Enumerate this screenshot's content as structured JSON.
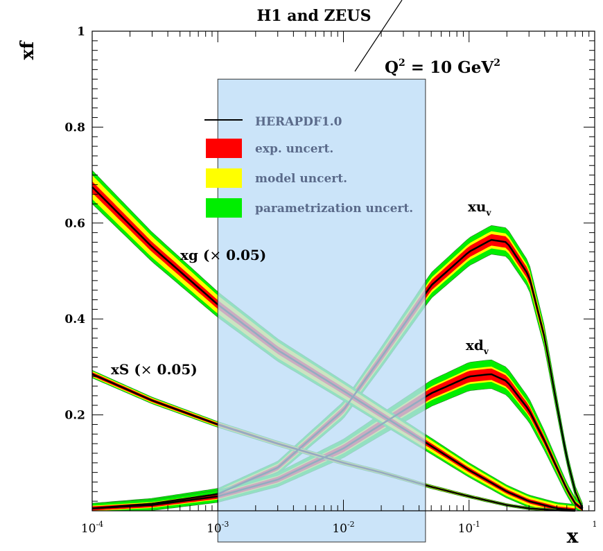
{
  "chart_data": {
    "type": "line",
    "title": "H1 and ZEUS",
    "annotation": "Q² = 10 GeV²",
    "annotation_parts": {
      "q": "Q",
      "q_exp": "2",
      "mid": " = 10 GeV",
      "gev_exp": "2"
    },
    "ylabel": "xf",
    "xlabel": "x",
    "xscale": "log",
    "xlim": [
      0.0001,
      1
    ],
    "ylim": [
      0,
      1
    ],
    "x_ticks": [
      {
        "base": "10",
        "exp": "-4",
        "value": 0.0001
      },
      {
        "base": "10",
        "exp": "-3",
        "value": 0.001
      },
      {
        "base": "10",
        "exp": "-2",
        "value": 0.01
      },
      {
        "base": "10",
        "exp": "-1",
        "value": 0.1
      },
      {
        "base": "",
        "exp": "1",
        "value": 1
      }
    ],
    "y_ticks": [
      "0.2",
      "0.4",
      "0.6",
      "0.8",
      "1"
    ],
    "y_tick_values": [
      0.2,
      0.4,
      0.6,
      0.8,
      1.0
    ],
    "legend": {
      "placement": "upper-center",
      "entries": [
        {
          "label": "HERAPDF1.0",
          "kind": "line",
          "color": "#000000"
        },
        {
          "label": "exp. uncert.",
          "kind": "band",
          "color": "#ff0000"
        },
        {
          "label": "model uncert.",
          "kind": "band",
          "color": "#ffff00"
        },
        {
          "label": "parametrization uncert.",
          "kind": "band",
          "color": "#00ee00"
        }
      ]
    },
    "colors": {
      "central": "#000000",
      "exp": "#ff0000",
      "model": "#ffff00",
      "param": "#00ee00",
      "highlight_fill": "#bcdcf7",
      "highlight_stroke": "#333333"
    },
    "highlight_region": {
      "x0": 0.001,
      "x1": 0.045,
      "y1": 0.9
    },
    "series": [
      {
        "name": "xu_v",
        "label_parts": {
          "main": "xu",
          "sub": "v"
        },
        "x": [
          0.0001,
          0.0003,
          0.001,
          0.003,
          0.01,
          0.02,
          0.05,
          0.1,
          0.15,
          0.2,
          0.3,
          0.4,
          0.5,
          0.6,
          0.7,
          0.8
        ],
        "y": [
          0.005,
          0.015,
          0.035,
          0.09,
          0.21,
          0.32,
          0.47,
          0.54,
          0.565,
          0.56,
          0.49,
          0.36,
          0.22,
          0.11,
          0.04,
          0.005
        ],
        "band_exp": 0.012,
        "band_model": 0.018,
        "band_param": 0.03
      },
      {
        "name": "xd_v",
        "label_parts": {
          "main": "xd",
          "sub": "v"
        },
        "x": [
          0.0001,
          0.0003,
          0.001,
          0.003,
          0.01,
          0.02,
          0.05,
          0.1,
          0.15,
          0.2,
          0.3,
          0.4,
          0.5,
          0.6,
          0.7,
          0.8
        ],
        "y": [
          0.005,
          0.012,
          0.03,
          0.065,
          0.13,
          0.18,
          0.245,
          0.28,
          0.285,
          0.27,
          0.21,
          0.145,
          0.09,
          0.045,
          0.015,
          0.003
        ],
        "band_exp": 0.012,
        "band_model": 0.016,
        "band_param": 0.03
      },
      {
        "name": "xg (×0.05)",
        "label_parts": {
          "main": "xg (",
          "times": "×",
          "factor": " 0.05",
          "close": ")"
        },
        "x": [
          0.0001,
          0.0003,
          0.001,
          0.003,
          0.01,
          0.02,
          0.05,
          0.1,
          0.2,
          0.3,
          0.5,
          0.7
        ],
        "y": [
          0.675,
          0.55,
          0.43,
          0.335,
          0.25,
          0.2,
          0.135,
          0.085,
          0.04,
          0.02,
          0.005,
          0.001
        ],
        "band_exp": 0.012,
        "band_model": 0.025,
        "band_param": 0.035
      },
      {
        "name": "xS (×0.05)",
        "label_parts": {
          "main": "xS (",
          "times": "×",
          "factor": " 0.05",
          "close": ")"
        },
        "x": [
          0.0001,
          0.0003,
          0.001,
          0.003,
          0.01,
          0.02,
          0.05,
          0.1,
          0.2,
          0.3,
          0.5,
          0.7
        ],
        "y": [
          0.285,
          0.23,
          0.18,
          0.14,
          0.1,
          0.08,
          0.05,
          0.03,
          0.012,
          0.005,
          0.001,
          0.0
        ],
        "band_exp": 0.004,
        "band_model": 0.006,
        "band_param": 0.008
      }
    ]
  }
}
